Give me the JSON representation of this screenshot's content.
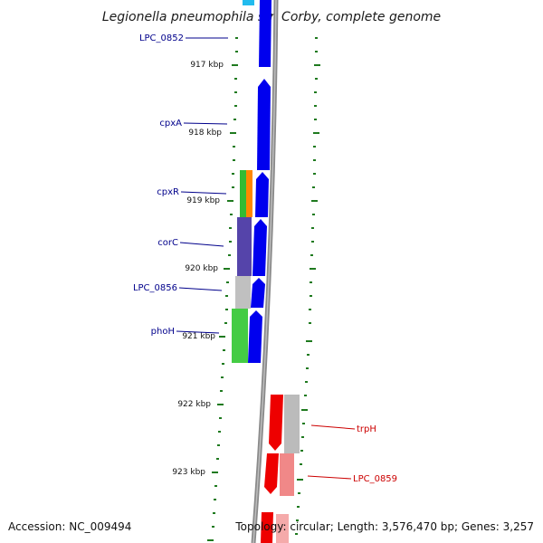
{
  "title": "Legionella pneumophila str. Corby, complete genome",
  "footer": {
    "accession": "Accession: NC_009494",
    "topology": "Topology: circular; Length: 3,576,470 bp; Genes: 3,257"
  },
  "ticks": [
    "917 kbp",
    "918 kbp",
    "919 kbp",
    "920 kbp",
    "921 kbp",
    "922 kbp",
    "923 kbp"
  ],
  "gene_labels_left": [
    "LPC_0852",
    "cpxA",
    "cpxR",
    "corC",
    "LPC_0856",
    "phoH"
  ],
  "gene_labels_right": [
    "trpH",
    "LPC_0859"
  ],
  "colors": {
    "forward_strand": "#0000ee",
    "reverse_strand": "#ee0000",
    "backbone": "#8a8a8a",
    "tick": "#1f7a1f",
    "label_left": "#00008b",
    "label_right": "#cc0000"
  }
}
